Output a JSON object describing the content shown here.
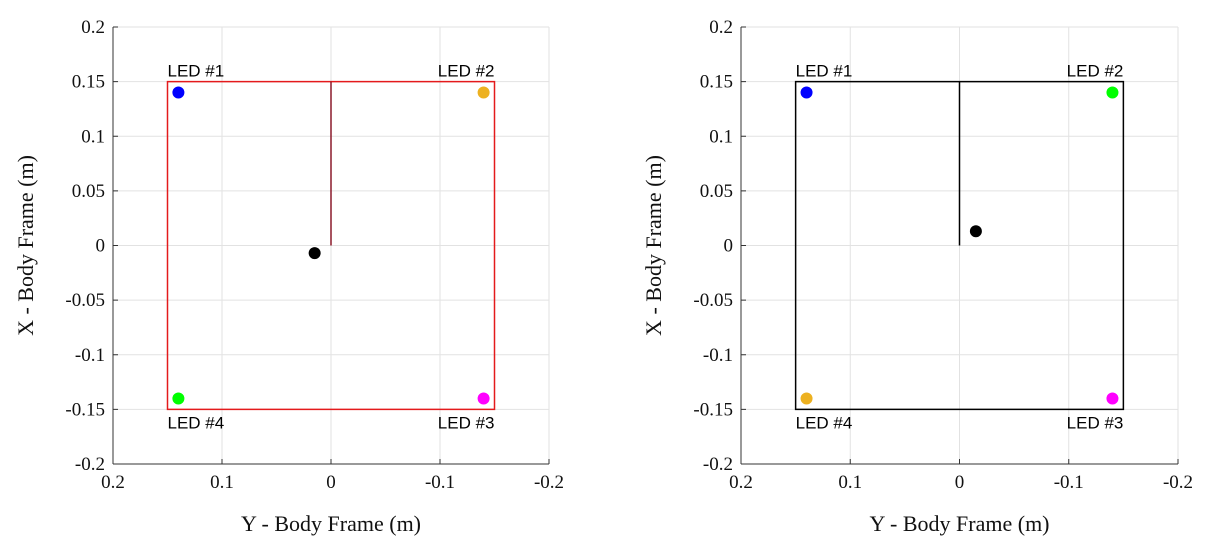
{
  "chart_data": [
    {
      "type": "scatter",
      "xlabel": "Y - Body Frame (m)",
      "ylabel": "X - Body Frame (m)",
      "xlim": [
        0.2,
        -0.2
      ],
      "ylim": [
        -0.2,
        0.2
      ],
      "x_reversed": true,
      "xticks": [
        0.2,
        0.1,
        0,
        -0.1,
        -0.2
      ],
      "xtick_labels": [
        "0.2",
        "0.1",
        "0",
        "-0.1",
        "-0.2"
      ],
      "yticks": [
        0.2,
        0.15,
        0.1,
        0.05,
        0,
        -0.05,
        -0.1,
        -0.15,
        -0.2
      ],
      "ytick_labels": [
        "0.2",
        "0.15",
        "0.1",
        "0.05",
        "0",
        "-0.05",
        "-0.1",
        "-0.15",
        "-0.2"
      ],
      "grid": true,
      "frame_color": "#e41a1c",
      "heading_line_color": "#8b1a2b",
      "frame_square": {
        "y_min": -0.15,
        "y_max": 0.15,
        "x_min": -0.15,
        "x_max": 0.15
      },
      "heading_line": {
        "y": 0,
        "x_start": 0,
        "x_end": 0.15
      },
      "center_point": {
        "y": 0.015,
        "x": -0.007,
        "color": "#000000"
      },
      "leds": [
        {
          "label": "LED #1",
          "y": 0.14,
          "x": 0.14,
          "color": "#0000ff",
          "label_pos": "above"
        },
        {
          "label": "LED #2",
          "y": -0.14,
          "x": 0.14,
          "color": "#edb120",
          "label_pos": "above"
        },
        {
          "label": "LED #3",
          "y": -0.14,
          "x": -0.14,
          "color": "#ff00ff",
          "label_pos": "below"
        },
        {
          "label": "LED #4",
          "y": 0.14,
          "x": -0.14,
          "color": "#00ff00",
          "label_pos": "below"
        }
      ]
    },
    {
      "type": "scatter",
      "xlabel": "Y - Body Frame (m)",
      "ylabel": "X - Body Frame (m)",
      "xlim": [
        0.2,
        -0.2
      ],
      "ylim": [
        -0.2,
        0.2
      ],
      "x_reversed": true,
      "xticks": [
        0.2,
        0.1,
        0,
        -0.1,
        -0.2
      ],
      "xtick_labels": [
        "0.2",
        "0.1",
        "0",
        "-0.1",
        "-0.2"
      ],
      "yticks": [
        0.2,
        0.15,
        0.1,
        0.05,
        0,
        -0.05,
        -0.1,
        -0.15,
        -0.2
      ],
      "ytick_labels": [
        "0.2",
        "0.15",
        "0.1",
        "0.05",
        "0",
        "-0.05",
        "-0.1",
        "-0.15",
        "-0.2"
      ],
      "grid": true,
      "frame_color": "#000000",
      "heading_line_color": "#000000",
      "frame_square": {
        "y_min": -0.15,
        "y_max": 0.15,
        "x_min": -0.15,
        "x_max": 0.15
      },
      "heading_line": {
        "y": 0,
        "x_start": 0,
        "x_end": 0.15
      },
      "center_point": {
        "y": -0.015,
        "x": 0.013,
        "color": "#000000"
      },
      "leds": [
        {
          "label": "LED #1",
          "y": 0.14,
          "x": 0.14,
          "color": "#0000ff",
          "label_pos": "above"
        },
        {
          "label": "LED #2",
          "y": -0.14,
          "x": 0.14,
          "color": "#00ff00",
          "label_pos": "above"
        },
        {
          "label": "LED #3",
          "y": -0.14,
          "x": -0.14,
          "color": "#ff00ff",
          "label_pos": "below"
        },
        {
          "label": "LED #4",
          "y": 0.14,
          "x": -0.14,
          "color": "#edb120",
          "label_pos": "below"
        }
      ]
    }
  ]
}
